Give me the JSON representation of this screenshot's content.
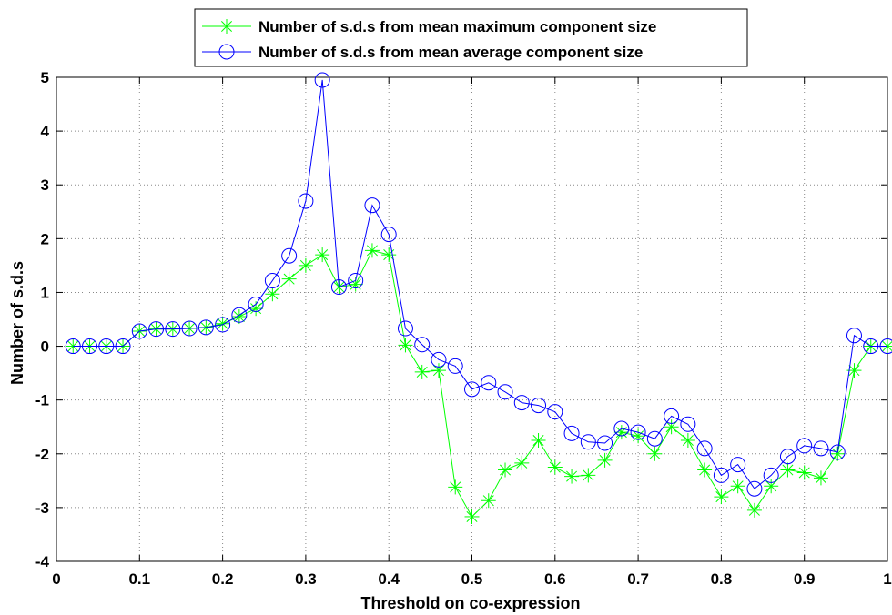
{
  "chart_data": {
    "type": "line",
    "xlabel": "Threshold on co-expression",
    "ylabel": "Number of s.d.s",
    "xlim": [
      0,
      1
    ],
    "ylim": [
      -4,
      5
    ],
    "xticks": [
      0,
      0.1,
      0.2,
      0.3,
      0.4,
      0.5,
      0.6,
      0.7,
      0.8,
      0.9,
      1
    ],
    "xtick_labels": [
      "0",
      "0.1",
      "0.2",
      "0.3",
      "0.4",
      "0.5",
      "0.6",
      "0.7",
      "0.8",
      "0.9",
      "1"
    ],
    "yticks": [
      -4,
      -3,
      -2,
      -1,
      0,
      1,
      2,
      3,
      4,
      5
    ],
    "ytick_labels": [
      "-4",
      "-3",
      "-2",
      "-1",
      "0",
      "1",
      "2",
      "3",
      "4",
      "5"
    ],
    "grid": true,
    "legend_position": "top-center",
    "x": [
      0.02,
      0.04,
      0.06,
      0.08,
      0.1,
      0.12,
      0.14,
      0.16,
      0.18,
      0.2,
      0.22,
      0.24,
      0.26,
      0.28,
      0.3,
      0.32,
      0.34,
      0.36,
      0.38,
      0.4,
      0.42,
      0.44,
      0.46,
      0.48,
      0.5,
      0.52,
      0.54,
      0.56,
      0.58,
      0.6,
      0.62,
      0.64,
      0.66,
      0.68,
      0.7,
      0.72,
      0.74,
      0.76,
      0.78,
      0.8,
      0.82,
      0.84,
      0.86,
      0.88,
      0.9,
      0.92,
      0.94,
      0.96,
      0.98,
      1.0
    ],
    "series": [
      {
        "name": "Number of s.d.s from mean maximum component size",
        "color": "#00ff00",
        "marker": "asterisk",
        "values": [
          0,
          0,
          0,
          0,
          0.28,
          0.32,
          0.32,
          0.33,
          0.35,
          0.42,
          0.55,
          0.7,
          0.97,
          1.25,
          1.5,
          1.7,
          1.1,
          1.15,
          1.78,
          1.7,
          0.02,
          -0.48,
          -0.45,
          -2.62,
          -3.17,
          -2.87,
          -2.3,
          -2.17,
          -1.75,
          -2.25,
          -2.42,
          -2.4,
          -2.12,
          -1.6,
          -1.67,
          -2.0,
          -1.5,
          -1.75,
          -2.3,
          -2.8,
          -2.6,
          -3.05,
          -2.6,
          -2.3,
          -2.35,
          -2.45,
          -2.0,
          -0.45,
          0,
          0
        ]
      },
      {
        "name": "Number of s.d.s from mean average component size",
        "color": "#0000ff",
        "marker": "circle",
        "values": [
          0,
          0,
          0,
          0,
          0.28,
          0.32,
          0.32,
          0.33,
          0.35,
          0.4,
          0.58,
          0.78,
          1.22,
          1.68,
          2.7,
          4.95,
          1.1,
          1.22,
          2.62,
          2.08,
          0.33,
          0.03,
          -0.25,
          -0.37,
          -0.8,
          -0.68,
          -0.85,
          -1.05,
          -1.1,
          -1.22,
          -1.62,
          -1.78,
          -1.8,
          -1.53,
          -1.6,
          -1.72,
          -1.3,
          -1.45,
          -1.9,
          -2.4,
          -2.2,
          -2.65,
          -2.4,
          -2.05,
          -1.85,
          -1.9,
          -1.97,
          0.2,
          0,
          0
        ]
      }
    ]
  }
}
